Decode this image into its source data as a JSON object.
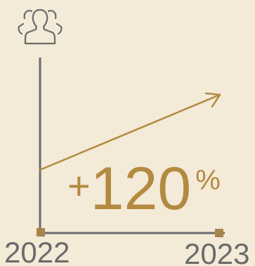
{
  "icon": "users-group-icon",
  "growth": {
    "sign": "+",
    "value": "120",
    "unit": "%"
  },
  "years": {
    "start": "2022",
    "end": "2023"
  },
  "colors": {
    "background": "#f3ead8",
    "accent": "#b38a3f",
    "axis": "#6b6b6b"
  }
}
